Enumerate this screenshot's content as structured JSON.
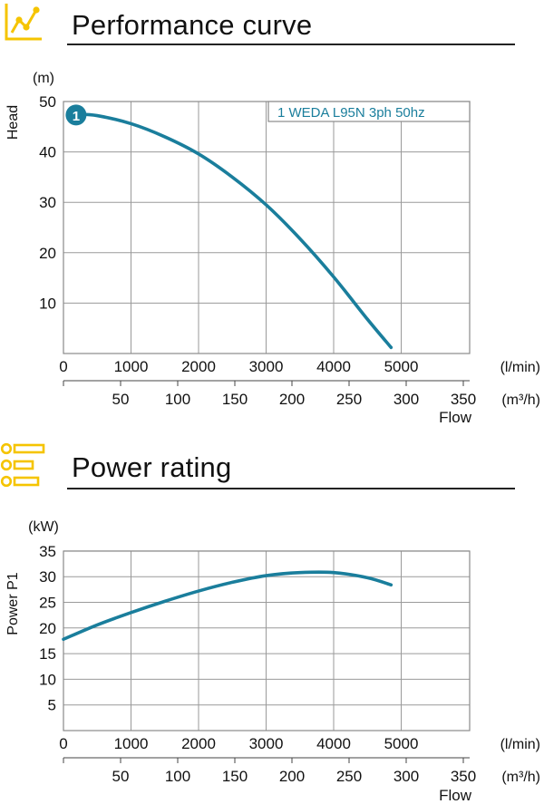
{
  "colors": {
    "accent": "#f5c400",
    "curve": "#1a7e9c",
    "grid": "#9a9a9a",
    "text": "#111111"
  },
  "icons": {
    "performance": "chart-trend-icon",
    "power": "list-bullets-icon"
  },
  "sections": {
    "performance": {
      "title": "Performance curve"
    },
    "power": {
      "title": "Power rating"
    }
  },
  "chart_data": [
    {
      "type": "line",
      "ylabel": "Head",
      "yunit": "(m)",
      "xlabel": "Flow",
      "xunit_primary": "(l/min)",
      "xunit_secondary": "(m³/h)",
      "ylim": [
        0,
        50
      ],
      "xlim": [
        0,
        6000
      ],
      "yticks": [
        "10",
        "20",
        "30",
        "40",
        "50"
      ],
      "xticks_primary": [
        "0",
        "1000",
        "2000",
        "3000",
        "4000",
        "5000"
      ],
      "xticks_secondary": [
        "50",
        "100",
        "150",
        "200",
        "250",
        "300",
        "350"
      ],
      "grid": true,
      "legend": "top-right",
      "series": [
        {
          "name": "1 WEDA L95N 3ph 50hz",
          "marker_label": "1",
          "x": [
            200,
            500,
            1000,
            1500,
            2000,
            2500,
            3000,
            3500,
            4000,
            4500,
            4850
          ],
          "y": [
            47.5,
            47.2,
            45.6,
            43.0,
            39.6,
            35.0,
            29.5,
            22.8,
            15.2,
            6.8,
            1.2
          ]
        }
      ]
    },
    {
      "type": "line",
      "ylabel": "Power P1",
      "yunit": "(kW)",
      "xlabel": "Flow",
      "xunit_primary": "(l/min)",
      "xunit_secondary": "(m³/h)",
      "ylim": [
        0,
        35
      ],
      "xlim": [
        0,
        6000
      ],
      "yticks": [
        "5",
        "10",
        "15",
        "20",
        "25",
        "30",
        "35"
      ],
      "xticks_primary": [
        "0",
        "1000",
        "2000",
        "3000",
        "4000",
        "5000"
      ],
      "xticks_secondary": [
        "50",
        "100",
        "150",
        "200",
        "250",
        "300",
        "350"
      ],
      "grid": true,
      "series": [
        {
          "x": [
            0,
            500,
            1000,
            1500,
            2000,
            2500,
            3000,
            3500,
            4000,
            4500,
            4850
          ],
          "y": [
            17.8,
            20.6,
            23.0,
            25.2,
            27.2,
            28.9,
            30.2,
            30.8,
            30.8,
            29.8,
            28.4
          ]
        }
      ]
    }
  ]
}
